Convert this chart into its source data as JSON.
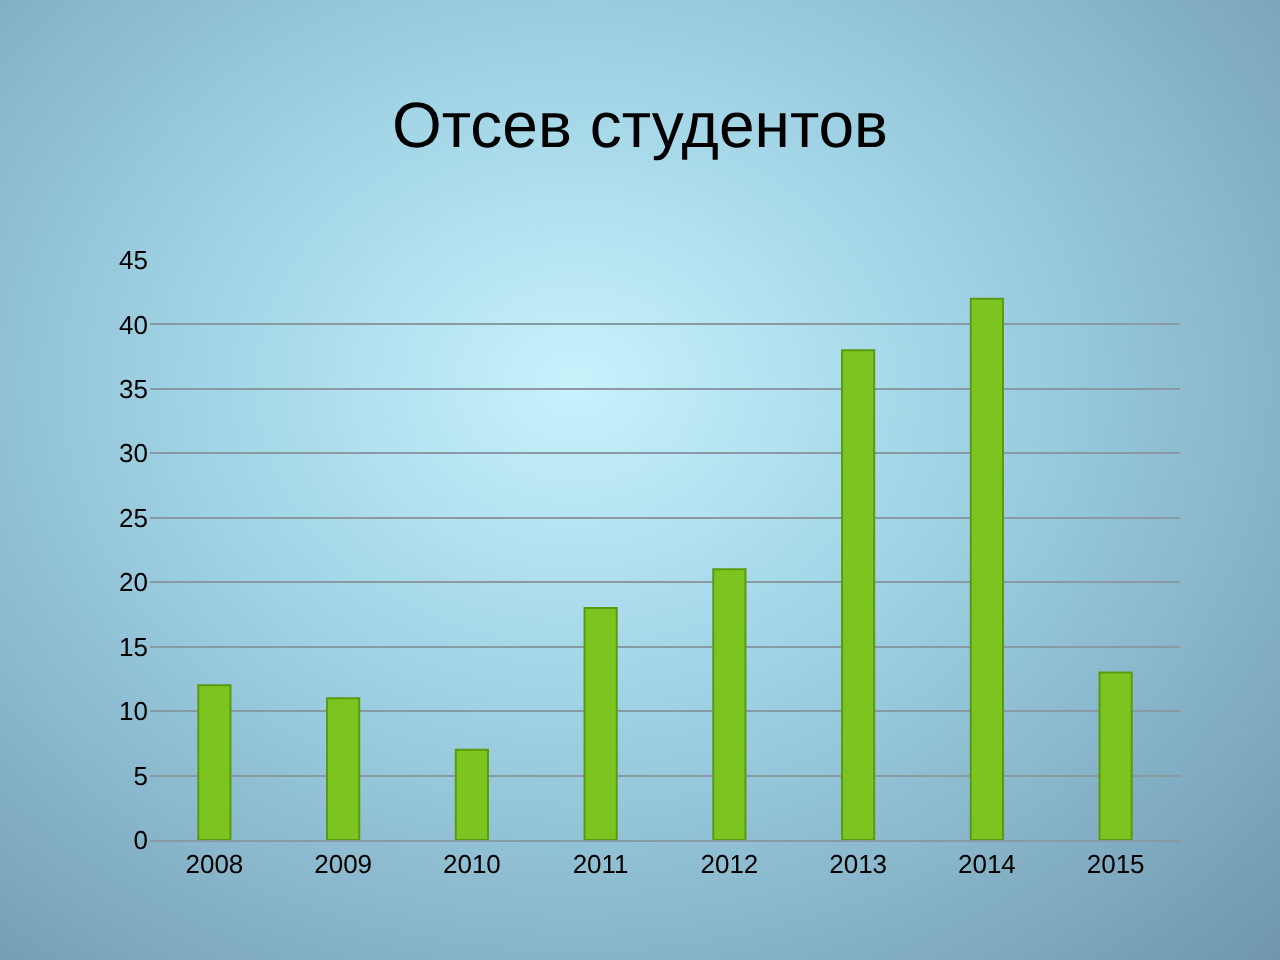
{
  "chart_data": {
    "type": "bar",
    "title": "Отсев студентов",
    "categories": [
      "2008",
      "2009",
      "2010",
      "2011",
      "2012",
      "2013",
      "2014",
      "2015"
    ],
    "values": [
      12,
      11,
      7,
      18,
      21,
      38,
      42,
      13
    ],
    "color": "#7cc520",
    "ylim": [
      0,
      45
    ],
    "yticks": [
      0,
      5,
      10,
      15,
      20,
      25,
      30,
      35,
      40,
      45
    ],
    "grid": "y",
    "legend": false
  }
}
